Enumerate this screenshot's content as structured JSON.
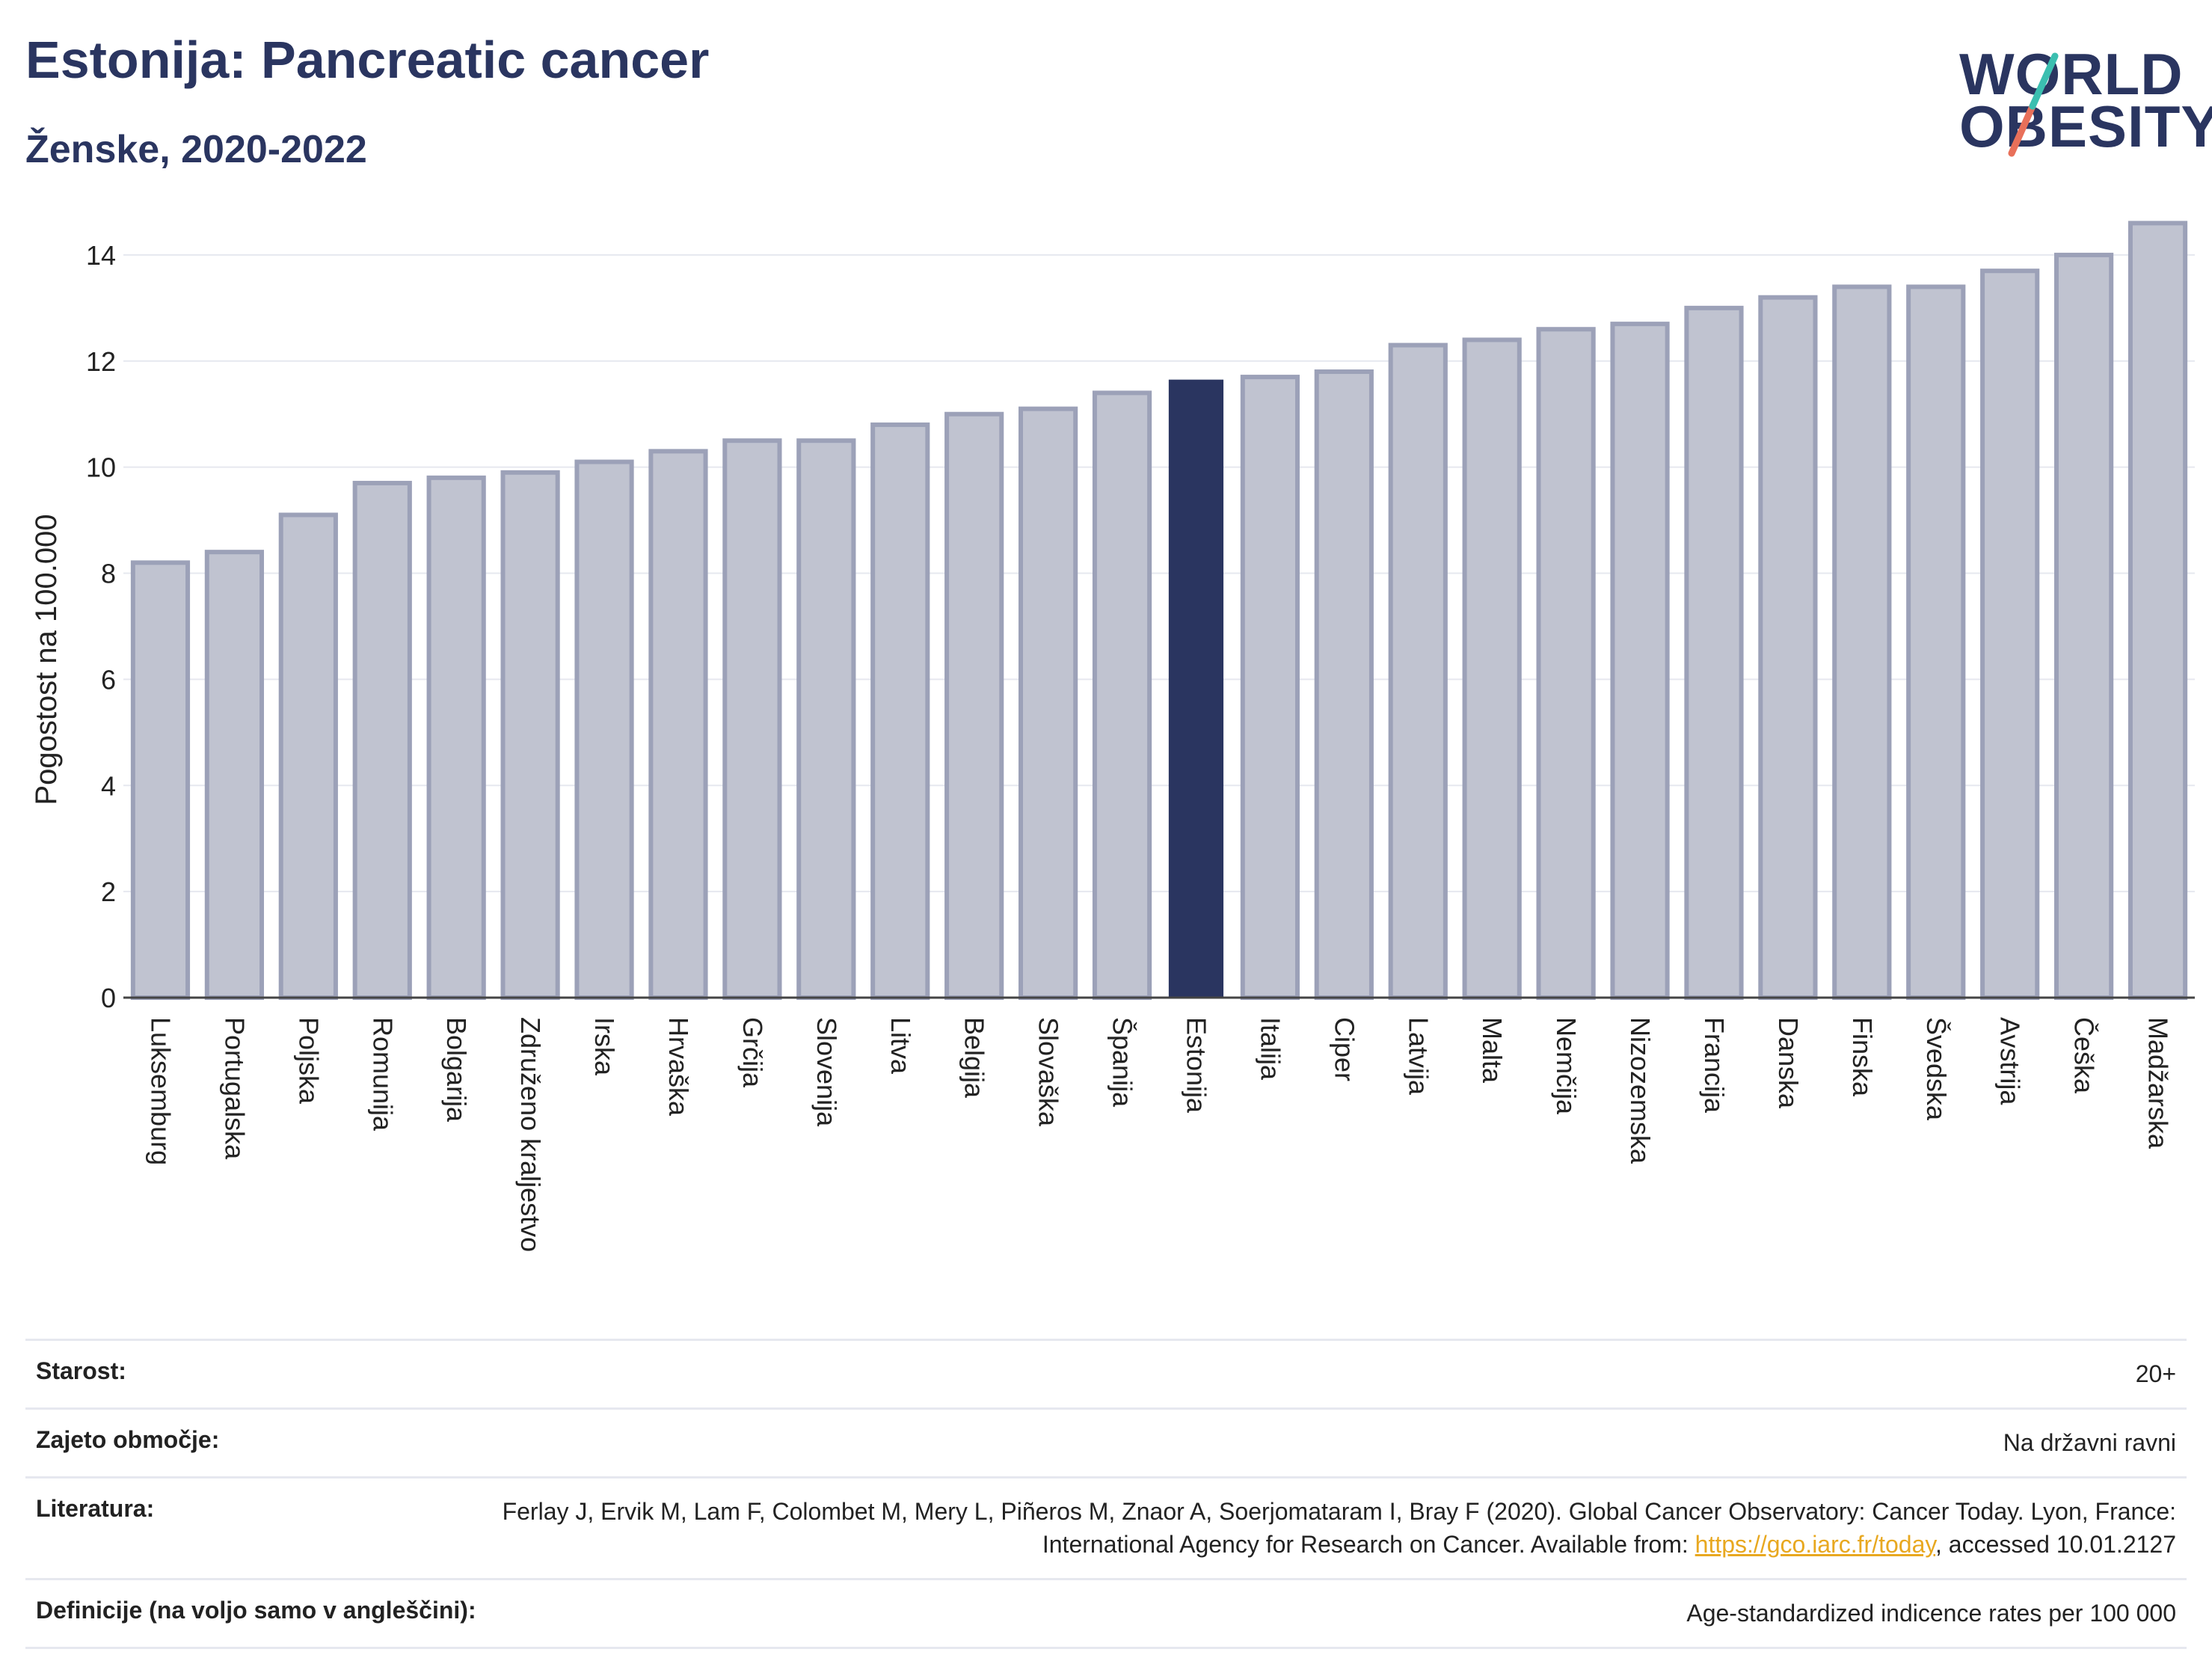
{
  "title": "Estonija: Pancreatic cancer",
  "subtitle": "Ženske, 2020-2022",
  "logo": {
    "line1": "WORLD",
    "line2": "OBESITY",
    "accent_colors": [
      "#3bbfb0",
      "#e8705a"
    ]
  },
  "colors": {
    "bar": "#c0c3d0",
    "bar_border": "#9ca1b8",
    "highlight": "#2a3560",
    "grid": "#e6e8ef",
    "link": "#e8a820"
  },
  "chart_data": {
    "type": "bar",
    "title": "",
    "xlabel": "",
    "ylabel": "Pogostost na 100.000",
    "ylim": [
      0,
      15
    ],
    "yticks": [
      0,
      2,
      4,
      6,
      8,
      10,
      12,
      14
    ],
    "grid": true,
    "highlight": "Estonija",
    "categories": [
      "Luksemburg",
      "Portugalska",
      "Poljska",
      "Romunija",
      "Bolgarija",
      "Združeno kraljestvo",
      "Irska",
      "Hrvaška",
      "Grčija",
      "Slovenija",
      "Litva",
      "Belgija",
      "Slovaška",
      "Španija",
      "Estonija",
      "Italija",
      "Ciper",
      "Latvija",
      "Malta",
      "Nemčija",
      "Nizozemska",
      "Francija",
      "Danska",
      "Finska",
      "Švedska",
      "Avstrija",
      "Češka",
      "Madžarska"
    ],
    "values": [
      8.2,
      8.4,
      9.1,
      9.7,
      9.8,
      9.9,
      10.1,
      10.3,
      10.5,
      10.5,
      10.8,
      11.0,
      11.1,
      11.4,
      11.65,
      11.7,
      11.8,
      12.3,
      12.4,
      12.6,
      12.7,
      13.0,
      13.2,
      13.4,
      13.4,
      13.7,
      14.0,
      14.6
    ]
  },
  "meta": {
    "age_label": "Starost:",
    "age_value": "20+",
    "area_label": "Zajeto območje:",
    "area_value": "Na državni ravni",
    "refs_label": "Literatura:",
    "refs_text1": "Ferlay J, Ervik M, Lam F, Colombet M, Mery L, Piñeros M, Znaor A, Soerjomataram I, Bray F (2020). Global Cancer Observatory: Cancer Today. Lyon, France: International Agency for Research on Cancer. Available from: ",
    "refs_link": "https://gco.iarc.fr/today",
    "refs_text2": ", accessed 10.01.2127",
    "defs_label": "Definicije (na voljo samo v angleščini):",
    "defs_value": "Age-standardized indicence rates per 100 000"
  }
}
